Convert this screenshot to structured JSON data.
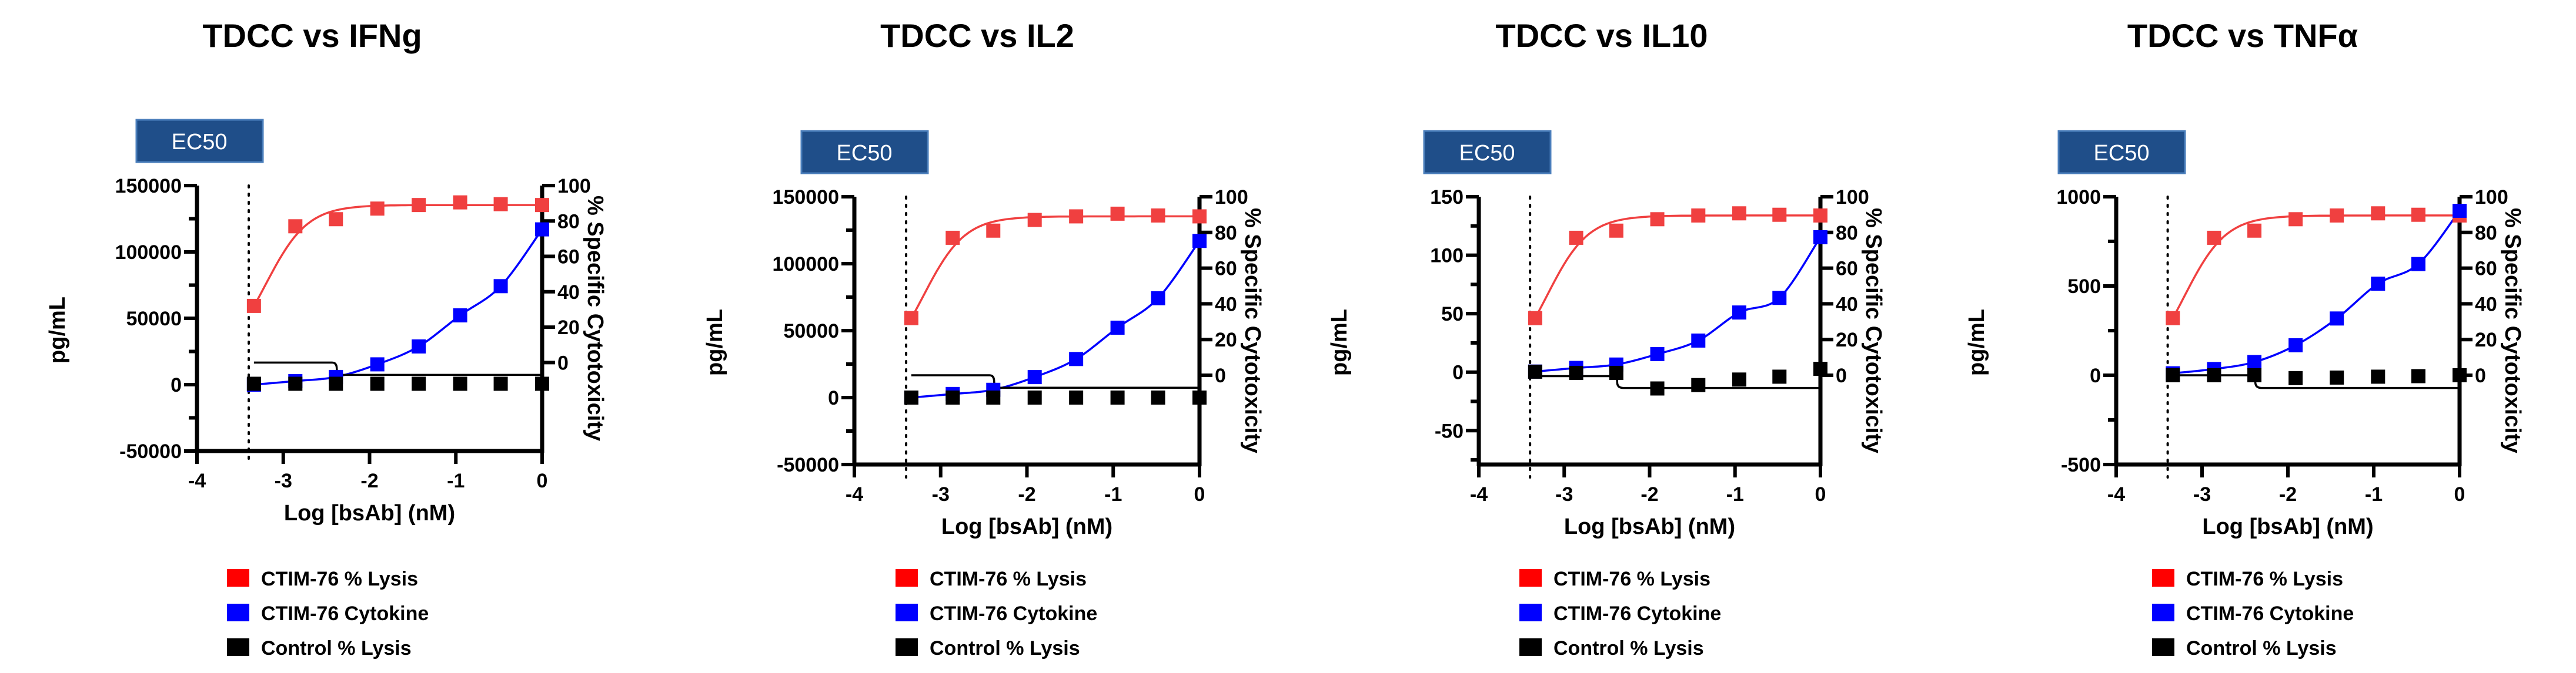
{
  "legend": [
    {
      "label": "CTIM-76 % Lysis",
      "color": "#ff0000"
    },
    {
      "label": "CTIM-76 Cytokine",
      "color": "#0000ff"
    },
    {
      "label": "Control % Lysis",
      "color": "#000000"
    }
  ],
  "chart_data": [
    {
      "type": "scatter",
      "title": "TDCC vs IFNg",
      "badge": "EC50",
      "xlabel": "Log [bsAb] (nM)",
      "ylabel": "pg/mL",
      "y2label": "% Specific Cytotoxicity",
      "xlim": [
        -4,
        0
      ],
      "xticks": [
        -4,
        -3,
        -2,
        -1,
        0
      ],
      "ylim": [
        -50000,
        150000
      ],
      "yticks": [
        -50000,
        0,
        50000,
        100000,
        150000
      ],
      "yminor": 25000,
      "y2lim": [
        -50,
        100
      ],
      "y2ticks": [
        0,
        20,
        40,
        60,
        80,
        100
      ],
      "ec50_line_x": -3.4,
      "x": [
        -3.34,
        -2.86,
        -2.39,
        -1.91,
        -1.43,
        -0.95,
        -0.48,
        0
      ],
      "series": [
        {
          "name": "CTIM-76 % Lysis",
          "axis": "right",
          "color": "#f04040",
          "values": [
            32,
            77,
            81,
            87,
            89,
            90.5,
            89.5,
            89
          ],
          "fit": {
            "type": "sigmoid",
            "top": 89,
            "ec50_log": -3.2,
            "hill": 1.8
          }
        },
        {
          "name": "CTIM-76 Cytokine",
          "axis": "left",
          "color": "#0000ff",
          "values": [
            0,
            2700,
            5800,
            15300,
            28800,
            52200,
            74200,
            117000
          ],
          "fit": {
            "type": "smooth"
          }
        },
        {
          "name": "Control % Lysis",
          "axis": "right",
          "color": "#000000",
          "values": [
            -12,
            -12,
            -12,
            -12,
            -12,
            -12,
            -12,
            -12
          ],
          "fit": {
            "type": "step",
            "before": 0,
            "after": -7,
            "at": -2.38
          }
        }
      ]
    },
    {
      "type": "scatter",
      "title": "TDCC vs IL2",
      "badge": "EC50",
      "xlabel": "Log [bsAb] (nM)",
      "ylabel": "pg/mL",
      "y2label": "% Specific Cytotoxicity",
      "xlim": [
        -4,
        0
      ],
      "xticks": [
        -4,
        -3,
        -2,
        -1,
        0
      ],
      "ylim": [
        -50000,
        150000
      ],
      "yticks": [
        -50000,
        0,
        50000,
        100000,
        150000
      ],
      "yminor": 25000,
      "y2lim": [
        -50,
        100
      ],
      "y2ticks": [
        0,
        20,
        40,
        60,
        80,
        100
      ],
      "ec50_line_x": -3.4,
      "x": [
        -3.34,
        -2.86,
        -2.39,
        -1.91,
        -1.43,
        -0.95,
        -0.48,
        0
      ],
      "series": [
        {
          "name": "CTIM-76 % Lysis",
          "axis": "right",
          "color": "#f04040",
          "values": [
            32,
            77,
            81,
            87,
            89,
            90.5,
            89.5,
            89
          ],
          "fit": {
            "type": "sigmoid",
            "top": 89,
            "ec50_log": -3.2,
            "hill": 1.8
          }
        },
        {
          "name": "CTIM-76 Cytokine",
          "axis": "left",
          "color": "#0000ff",
          "values": [
            0,
            2700,
            5800,
            15300,
            28800,
            52200,
            74200,
            117000
          ],
          "fit": {
            "type": "smooth"
          }
        },
        {
          "name": "Control % Lysis",
          "axis": "right",
          "color": "#000000",
          "values": [
            -12.5,
            -12.5,
            -12.5,
            -12.5,
            -12.5,
            -12.5,
            -12.5,
            -12.5
          ],
          "fit": {
            "type": "step",
            "before": 0,
            "after": -7,
            "at": -2.38
          }
        }
      ]
    },
    {
      "type": "scatter",
      "title": "TDCC vs IL10",
      "badge": "EC50",
      "xlabel": "Log [bsAb] (nM)",
      "ylabel": "pg/mL",
      "y2label": "% Specific Cytotoxicity",
      "xlim": [
        -4,
        0
      ],
      "xticks": [
        -4,
        -3,
        -2,
        -1,
        0
      ],
      "ylim": [
        -79,
        150
      ],
      "yticks": [
        -50,
        0,
        50,
        100,
        150
      ],
      "yminor": 25,
      "y2lim": [
        -50,
        100
      ],
      "y2ticks": [
        0,
        20,
        40,
        60,
        80,
        100
      ],
      "ec50_line_x": -3.4,
      "x": [
        -3.34,
        -2.86,
        -2.39,
        -1.91,
        -1.43,
        -0.95,
        -0.48,
        0
      ],
      "series": [
        {
          "name": "CTIM-76 % Lysis",
          "axis": "right",
          "color": "#f04040",
          "values": [
            32,
            77,
            81,
            87.4,
            89.5,
            90.7,
            89.9,
            89.5
          ],
          "fit": {
            "type": "sigmoid",
            "top": 89.5,
            "ec50_log": -3.2,
            "hill": 1.8
          }
        },
        {
          "name": "CTIM-76 Cytokine",
          "axis": "left",
          "color": "#0000ff",
          "values": [
            0.5,
            3.6,
            6.5,
            15.4,
            27,
            51,
            63.5,
            115.4
          ],
          "fit": {
            "type": "smooth"
          }
        },
        {
          "name": "Control % Lysis",
          "axis": "right",
          "color": "#000000",
          "values": [
            2,
            1.3,
            1.3,
            -7.4,
            -5.5,
            -2.4,
            -0.8,
            3.6
          ],
          "fit": {
            "type": "step",
            "before": -0.5,
            "after": -7.1,
            "at": -2.38
          }
        }
      ]
    },
    {
      "type": "scatter",
      "title": "TDCC vs TNFα",
      "badge": "EC50",
      "xlabel": "Log [bsAb] (nM)",
      "ylabel": "pg/mL",
      "y2label": "% Specific Cytotoxicity",
      "xlim": [
        -4,
        0
      ],
      "xticks": [
        -4,
        -3,
        -2,
        -1,
        0
      ],
      "ylim": [
        -500,
        1000
      ],
      "yticks": [
        -500,
        0,
        500,
        1000
      ],
      "yminor": 250,
      "y2lim": [
        -50,
        100
      ],
      "y2ticks": [
        0,
        20,
        40,
        60,
        80,
        100
      ],
      "ec50_line_x": -3.4,
      "x": [
        -3.34,
        -2.86,
        -2.39,
        -1.91,
        -1.43,
        -0.95,
        -0.48,
        0
      ],
      "series": [
        {
          "name": "CTIM-76 % Lysis",
          "axis": "right",
          "color": "#f04040",
          "values": [
            32,
            77,
            81,
            87.4,
            89.5,
            90.7,
            89.9,
            89.5
          ],
          "fit": {
            "type": "sigmoid",
            "top": 89.5,
            "ec50_log": -3.2,
            "hill": 1.8
          }
        },
        {
          "name": "CTIM-76 Cytokine",
          "axis": "left",
          "color": "#0000ff",
          "values": [
            11,
            35,
            74,
            168,
            318,
            513,
            623,
            921
          ],
          "fit": {
            "type": "smooth"
          }
        },
        {
          "name": "Control % Lysis",
          "axis": "right",
          "color": "#000000",
          "values": [
            0,
            0,
            0,
            -1.6,
            -1.3,
            -0.8,
            -0.5,
            0
          ],
          "fit": {
            "type": "step",
            "before": 0,
            "after": -7.1,
            "at": -2.38
          }
        }
      ]
    }
  ]
}
